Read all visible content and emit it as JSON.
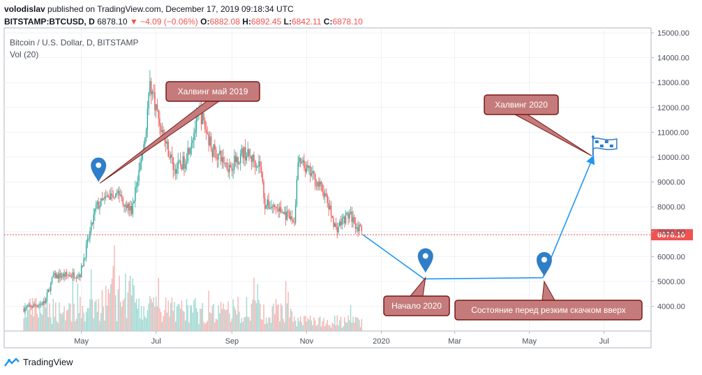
{
  "header": {
    "author": "volodislav",
    "published": "published on TradingView.com, December 17, 2019 09:18:34 UTC",
    "symbol": "BITSTAMP:BTCUSD, D",
    "last": "6878.10",
    "change": "▼ −4.09 (−0.06%)",
    "o_label": "O:",
    "o": "6882.08",
    "h_label": "H:",
    "h": "6892.45",
    "l_label": "L:",
    "l": "6842.11",
    "c_label": "C:",
    "c": "6878.10"
  },
  "legend": {
    "title": "Bitcoin / U.S. Dollar, D, BITSTAMP",
    "indicator": "Vol (20)"
  },
  "branding": {
    "name": "TradingView"
  },
  "colors": {
    "up": "#26a69a",
    "down": "#ef5350",
    "vol_up": "#9fd9d3",
    "vol_down": "#f5b4b2",
    "arrow": "#2196f3",
    "callout_fill": "#c57b7b",
    "callout_border": "#7a1818",
    "marker": "#2f7ec8"
  },
  "chart_data": {
    "type": "candlestick",
    "price_axis": {
      "ticks": [
        "15000.00",
        "14000.00",
        "13000.00",
        "12000.00",
        "11000.00",
        "10000.00",
        "9000.00",
        "8000.00",
        "7000.00",
        "6000.00",
        "5000.00",
        "4000.00"
      ],
      "last_price_label": "6878.10"
    },
    "time_axis": {
      "ticks": [
        "May",
        "Jul",
        "Sep",
        "Nov",
        "2020",
        "Mar",
        "May",
        "Jul"
      ]
    },
    "price_path_keypoints": [
      {
        "date": "2019-03-15",
        "price": 3900
      },
      {
        "date": "2019-04-01",
        "price": 4150
      },
      {
        "date": "2019-04-08",
        "price": 5200
      },
      {
        "date": "2019-04-30",
        "price": 5300
      },
      {
        "date": "2019-05-13",
        "price": 8000
      },
      {
        "date": "2019-05-30",
        "price": 8650
      },
      {
        "date": "2019-06-11",
        "price": 7800
      },
      {
        "date": "2019-06-22",
        "price": 10800
      },
      {
        "date": "2019-06-26",
        "price": 13000
      },
      {
        "date": "2019-07-05",
        "price": 11200
      },
      {
        "date": "2019-07-16",
        "price": 9500
      },
      {
        "date": "2019-07-24",
        "price": 9800
      },
      {
        "date": "2019-08-06",
        "price": 11800
      },
      {
        "date": "2019-08-16",
        "price": 10300
      },
      {
        "date": "2019-08-30",
        "price": 9600
      },
      {
        "date": "2019-09-10",
        "price": 10200
      },
      {
        "date": "2019-09-24",
        "price": 9700
      },
      {
        "date": "2019-09-28",
        "price": 8100
      },
      {
        "date": "2019-10-06",
        "price": 8000
      },
      {
        "date": "2019-10-22",
        "price": 7400
      },
      {
        "date": "2019-10-25",
        "price": 9800
      },
      {
        "date": "2019-11-05",
        "price": 9300
      },
      {
        "date": "2019-11-15",
        "price": 8600
      },
      {
        "date": "2019-11-25",
        "price": 7100
      },
      {
        "date": "2019-12-01",
        "price": 7500
      },
      {
        "date": "2019-12-06",
        "price": 7700
      },
      {
        "date": "2019-12-17",
        "price": 6878
      }
    ],
    "projection_path": [
      {
        "date": "2019-12-17",
        "price": 6878
      },
      {
        "date": "2020-02-05",
        "price": 5100
      },
      {
        "date": "2020-05-12",
        "price": 5150
      },
      {
        "date": "2020-06-22",
        "price": 10000
      }
    ],
    "annotations": [
      {
        "text": "Халвинг май 2019",
        "date": "2019-05-15",
        "price": 9000
      },
      {
        "text": "Халвинг 2020",
        "date": "2020-06-22",
        "price": 10000
      },
      {
        "text": "Начало 2020",
        "date": "2020-02-05",
        "price": 5100
      },
      {
        "text": "Состояние перед резким скачком вверх",
        "date": "2020-05-12",
        "price": 4950
      }
    ]
  }
}
